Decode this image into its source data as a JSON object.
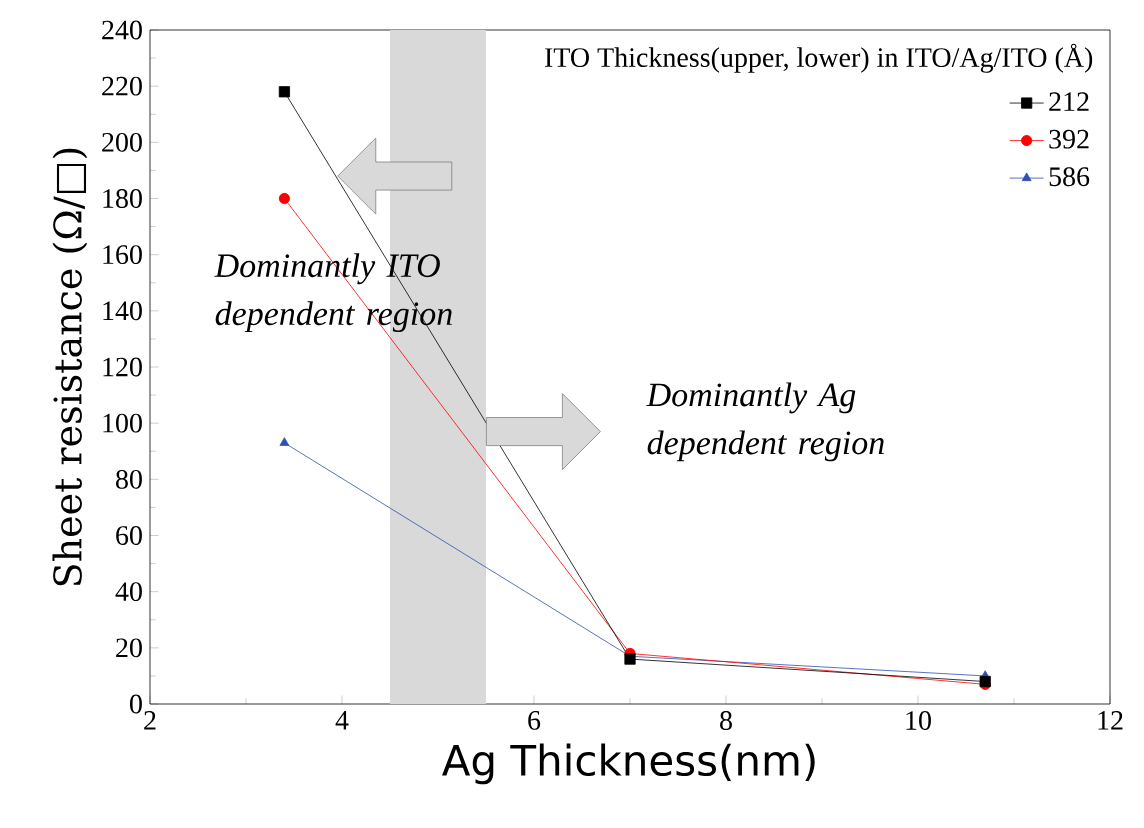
{
  "chart_data": {
    "type": "line",
    "xlabel": "Ag Thickness(nm)",
    "ylabel": "Sheet resistance (Ω/□)",
    "legend_title": "ITO Thickness(upper, lower) in ITO/Ag/ITO (Å)",
    "x": [
      3.4,
      7,
      10.7
    ],
    "series": [
      {
        "name": "212",
        "color": "#000000",
        "marker": "square",
        "values": [
          218,
          16,
          8
        ]
      },
      {
        "name": "392",
        "color": "#ff0000",
        "marker": "circle",
        "values": [
          180,
          18,
          7
        ]
      },
      {
        "name": "586",
        "color": "#3050b0",
        "marker": "triangle",
        "values": [
          93,
          17,
          10
        ]
      }
    ],
    "xlim": [
      2,
      12
    ],
    "xticks": [
      2,
      4,
      6,
      8,
      10,
      12
    ],
    "ylim": [
      0,
      240
    ],
    "yticks": [
      0,
      20,
      40,
      60,
      80,
      100,
      120,
      140,
      160,
      180,
      200,
      220,
      240
    ],
    "bands": [
      {
        "axis": "x",
        "from": 4.5,
        "to": 5.5
      }
    ],
    "annotations": [
      "Dominantly ITO dependent region",
      "Dominantly Ag dependent region"
    ],
    "legend": "top right",
    "grid": false,
    "line_style": "solid"
  }
}
